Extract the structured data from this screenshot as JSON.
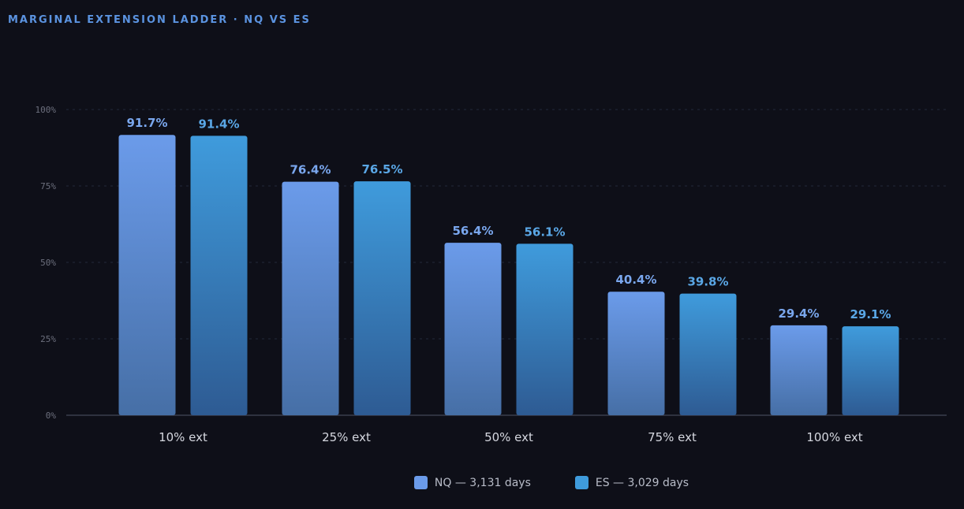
{
  "title": "MARGINAL EXTENSION LADDER · NQ VS ES",
  "colors": {
    "background": "#0e0f18",
    "title": "#5b93e0",
    "nq_top": "#6b9bea",
    "nq_bottom": "#466fa6",
    "es_top": "#3f9bdc",
    "es_bottom": "#2e5b93",
    "nq_label": "#7aa7ee",
    "es_label": "#5aa7e6",
    "grid": "#23283a",
    "axis": "#3a3e4e"
  },
  "chart_data": {
    "type": "bar",
    "title": "MARGINAL EXTENSION LADDER · NQ VS ES",
    "categories": [
      "10% ext",
      "25% ext",
      "50% ext",
      "75% ext",
      "100% ext"
    ],
    "series": [
      {
        "name": "NQ — 3,131 days",
        "values": [
          91.7,
          76.4,
          56.4,
          40.4,
          29.4
        ],
        "labels": [
          "91.7%",
          "76.4%",
          "56.4%",
          "40.4%",
          "29.4%"
        ]
      },
      {
        "name": "ES — 3,029 days",
        "values": [
          91.4,
          76.5,
          56.1,
          39.8,
          29.1
        ],
        "labels": [
          "91.4%",
          "76.5%",
          "56.1%",
          "39.8%",
          "29.1%"
        ]
      }
    ],
    "yticks": [
      0,
      25,
      50,
      75,
      100
    ],
    "ytick_labels": [
      "0%",
      "25%",
      "50%",
      "75%",
      "100%"
    ],
    "ylim": [
      0,
      100
    ],
    "grid": true,
    "legend_position": "bottom-center",
    "xlabel": "",
    "ylabel": ""
  }
}
